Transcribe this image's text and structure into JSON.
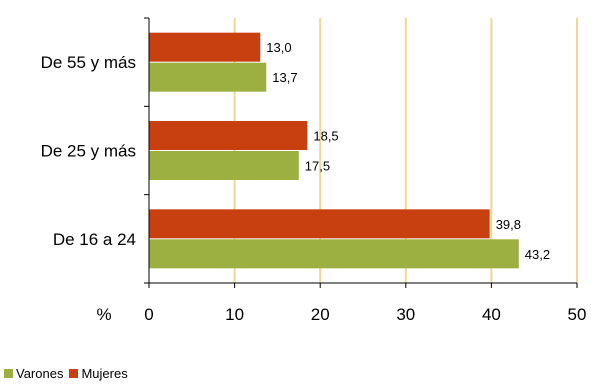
{
  "chart_data": {
    "type": "bar",
    "orientation": "horizontal",
    "categories": [
      "De 55 y más",
      "De 25 y más",
      "De 16 a 24"
    ],
    "series": [
      {
        "name": "Mujeres",
        "color": "#c84010",
        "values": [
          13.0,
          18.5,
          39.8
        ],
        "labels": [
          "13,0",
          "18,5",
          "39,8"
        ]
      },
      {
        "name": "Varones",
        "color": "#9bb040",
        "values": [
          13.7,
          17.5,
          43.2
        ],
        "labels": [
          "13,7",
          "17,5",
          "43,2"
        ]
      }
    ],
    "xlim": [
      0,
      50
    ],
    "xticks": [
      0,
      10,
      20,
      30,
      40,
      50
    ],
    "xlabel": "%",
    "gridline_color": "#f0d890",
    "legend": {
      "position": "bottom-left",
      "order": [
        "Varones",
        "Mujeres"
      ]
    }
  }
}
